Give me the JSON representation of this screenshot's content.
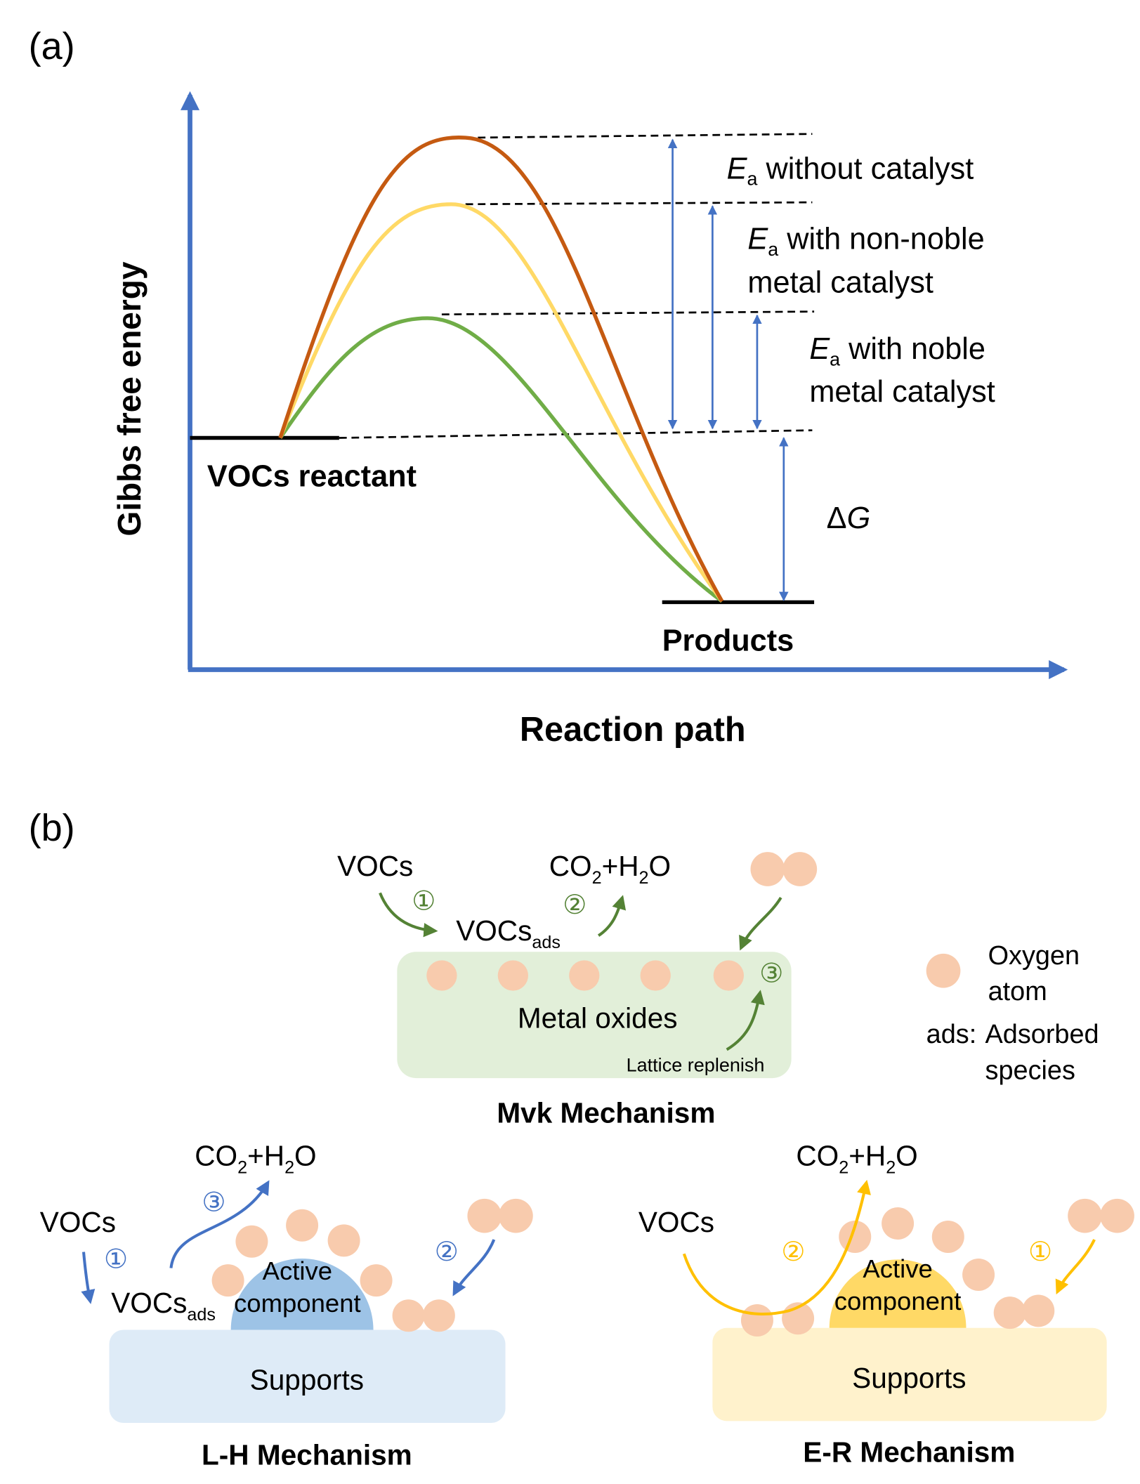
{
  "panel_a": {
    "label": "(a)",
    "y_axis_label": "Gibbs free energy",
    "x_axis_label": "Reaction path",
    "reactant": "VOCs reactant",
    "products": "Products",
    "ea_without": {
      "symbol": "E",
      "subscript": "a",
      "text": " without catalyst"
    },
    "ea_non_noble": {
      "symbol": "E",
      "subscript": "a",
      "line1": " with non-noble",
      "line2": "metal catalyst"
    },
    "ea_noble": {
      "symbol": "E",
      "subscript": "a",
      "line1": " with noble",
      "line2": "metal catalyst"
    },
    "delta_g": {
      "delta": "Δ",
      "symbol": "G"
    }
  },
  "panel_b": {
    "label": "(b)",
    "mvk": {
      "title": "Mvk Mechanism",
      "box": "Metal oxides",
      "vocs": "VOCs",
      "vocs_ads": {
        "text": "VOCs",
        "subscript": "ads"
      },
      "product": [
        "CO",
        "2",
        "+H",
        "2",
        "O"
      ],
      "steps": [
        "①",
        "②",
        "③"
      ],
      "note": "Lattice replenish"
    },
    "legend": {
      "oxygen": [
        "Oxygen",
        "atom"
      ],
      "ads_key": "ads:",
      "ads_text": [
        "Adsorbed",
        "species"
      ]
    },
    "lh": {
      "title": "L-H Mechanism",
      "support": "Supports",
      "active": [
        "Active",
        "component"
      ],
      "vocs": "VOCs",
      "vocs_ads": {
        "text": "VOCs",
        "subscript": "ads"
      },
      "product": [
        "CO",
        "2",
        "+H",
        "2",
        "O"
      ],
      "steps": [
        "①",
        "②",
        "③"
      ]
    },
    "er": {
      "title": "E-R Mechanism",
      "support": "Supports",
      "active": [
        "Active",
        "component"
      ],
      "vocs": "VOCs",
      "product": [
        "CO",
        "2",
        "+H",
        "2",
        "O"
      ],
      "steps": [
        "①",
        "②"
      ]
    }
  }
}
